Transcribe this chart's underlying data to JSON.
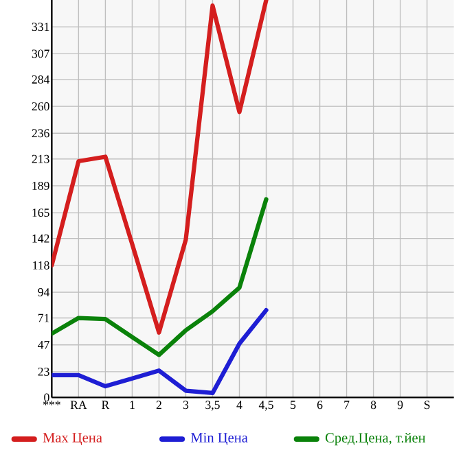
{
  "chart_data": {
    "type": "line",
    "categories": [
      "***",
      "RA",
      "R",
      "1",
      "2",
      "3",
      "3,5",
      "4",
      "4,5",
      "5",
      "6",
      "7",
      "8",
      "9",
      "S"
    ],
    "series": [
      {
        "name": "Max Цена",
        "color": "#d41e1e",
        "values": [
          118,
          211,
          215,
          137,
          58,
          141,
          350,
          255,
          355,
          null,
          null,
          null,
          null,
          null,
          null
        ]
      },
      {
        "name": "Min Цена",
        "color": "#1e1ed4",
        "values": [
          20,
          20,
          10,
          17,
          24,
          6,
          4,
          48,
          78,
          null,
          null,
          null,
          null,
          null,
          null
        ]
      },
      {
        "name": "Сред.Цена, т.йен",
        "color": "#0a820a",
        "values": [
          57,
          71,
          70,
          54,
          38,
          60,
          77,
          98,
          177,
          null,
          null,
          null,
          null,
          null,
          null
        ]
      }
    ],
    "ylim": [
      0,
      355
    ],
    "yticks": [
      0,
      23,
      47,
      71,
      94,
      118,
      142,
      165,
      189,
      213,
      236,
      260,
      284,
      307,
      331
    ],
    "grid": true,
    "legend": "bottom",
    "marker": "none",
    "line_style": "solid"
  }
}
